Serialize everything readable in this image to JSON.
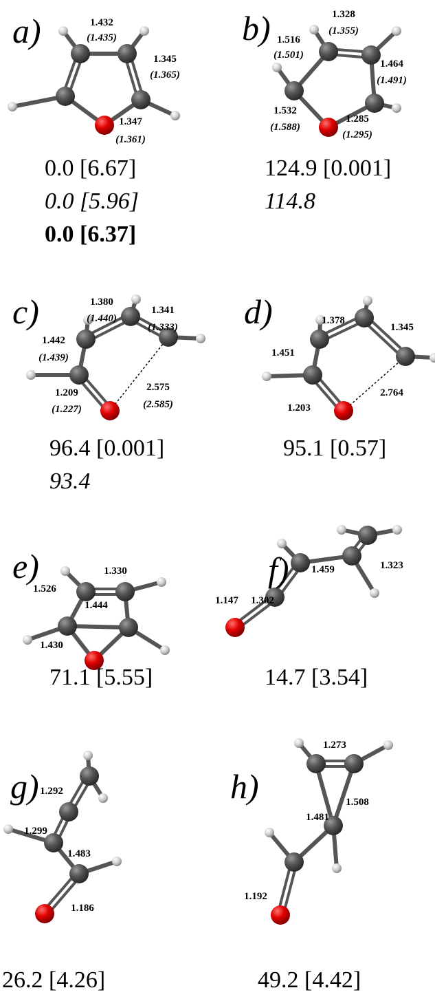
{
  "panels": [
    {
      "label": "a)",
      "bonds": [
        {
          "value": "1.432",
          "alt": "(1.435)"
        },
        {
          "value": "1.345",
          "alt": "(1.365)"
        },
        {
          "value": "1.347",
          "alt": "(1.361)"
        }
      ],
      "energies": [
        "0.0 [6.67]",
        "0.0 [5.96]",
        "0.0 [6.37]"
      ]
    },
    {
      "label": "b)",
      "bonds": [
        {
          "value": "1.328",
          "alt": "(1.355)"
        },
        {
          "value": "1.516",
          "alt": "(1.501)"
        },
        {
          "value": "1.464",
          "alt": "(1.491)"
        },
        {
          "value": "1.532",
          "alt": "(1.588)"
        },
        {
          "value": "1.285",
          "alt": "(1.295)"
        }
      ],
      "energies": [
        "124.9 [0.001]",
        "114.8"
      ]
    },
    {
      "label": "c)",
      "bonds": [
        {
          "value": "1.380",
          "alt": "(1.440)"
        },
        {
          "value": "1.341",
          "alt": "(1.333)"
        },
        {
          "value": "1.442",
          "alt": "(1.439)"
        },
        {
          "value": "1.209",
          "alt": "(1.227)"
        },
        {
          "value": "2.575",
          "alt": "(2.585)"
        }
      ],
      "energies": [
        "96.4 [0.001]",
        "93.4"
      ]
    },
    {
      "label": "d)",
      "bonds": [
        {
          "value": "1.378"
        },
        {
          "value": "1.345"
        },
        {
          "value": "1.451"
        },
        {
          "value": "1.203"
        },
        {
          "value": "2.764"
        }
      ],
      "energies": [
        "95.1 [0.57]"
      ]
    },
    {
      "label": "e)",
      "bonds": [
        {
          "value": "1.330"
        },
        {
          "value": "1.526"
        },
        {
          "value": "1.444"
        },
        {
          "value": "1.430"
        }
      ],
      "energies": [
        "71.1 [5.55]"
      ]
    },
    {
      "label": "f)",
      "bonds": [
        {
          "value": "1.459"
        },
        {
          "value": "1.323"
        },
        {
          "value": "1.302"
        },
        {
          "value": "1.147"
        }
      ],
      "energies": [
        "14.7 [3.54]"
      ]
    },
    {
      "label": "g)",
      "bonds": [
        {
          "value": "1.292"
        },
        {
          "value": "1.299"
        },
        {
          "value": "1.483"
        },
        {
          "value": "1.186"
        }
      ],
      "energies": [
        "26.2 [4.26]"
      ]
    },
    {
      "label": "h)",
      "bonds": [
        {
          "value": "1.273"
        },
        {
          "value": "1.508"
        },
        {
          "value": "1.481"
        },
        {
          "value": "1.192"
        }
      ],
      "energies": [
        "49.2 [4.42]"
      ]
    }
  ]
}
